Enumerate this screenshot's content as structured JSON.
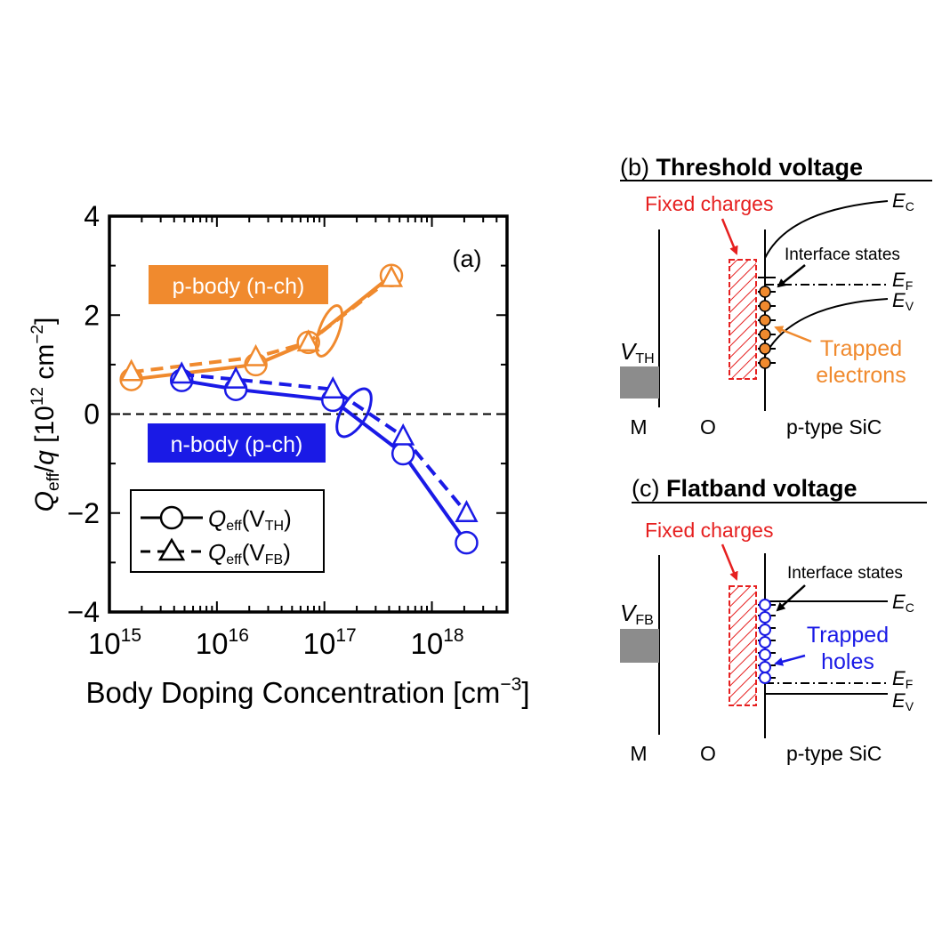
{
  "colors": {
    "orange": "#f08a2e",
    "blue": "#1a1ae6",
    "red": "#e62020",
    "black": "#000000",
    "gray": "#8c8c8c"
  },
  "chart_data": {
    "type": "line",
    "panel_label": "(a)",
    "xlabel": "Body Doping Concentration [cm",
    "xlabel_exp": "−3",
    "xlabel_close": "]",
    "ylabel_q": "Q",
    "ylabel_eff": "eff",
    "ylabel_slash": "/",
    "ylabel_qq": "q",
    "ylabel_rest": " [10",
    "ylabel_exp12": "12",
    "ylabel_cm": " cm",
    "ylabel_expm2": "−2",
    "ylabel_close": "]",
    "x_scale": "log",
    "xlim": [
      1000000000000000.0,
      5e+18
    ],
    "ylim": [
      -4,
      4
    ],
    "y_ticks": [
      {
        "v": 4,
        "label": "4"
      },
      {
        "v": 2,
        "label": "2"
      },
      {
        "v": 0,
        "label": "0"
      },
      {
        "v": -2,
        "label": "−2"
      },
      {
        "v": -4,
        "label": "−4"
      }
    ],
    "x_ticks": [
      {
        "exp": 15,
        "base": "10",
        "sup": "15"
      },
      {
        "exp": 16,
        "base": "10",
        "sup": "16"
      },
      {
        "exp": 17,
        "base": "10",
        "sup": "17"
      },
      {
        "exp": 18,
        "base": "10",
        "sup": "18"
      }
    ],
    "group_labels": {
      "p_body": "p-body (n-ch)",
      "n_body": "n-body (p-ch)"
    },
    "legend": {
      "vth_q": "Q",
      "vth_eff": "eff",
      "vth_open": "(V",
      "vth_sub": "TH",
      "vth_close": ")",
      "vfb_q": "Q",
      "vfb_eff": "eff",
      "vfb_open": "(V",
      "vfb_sub": "FB",
      "vfb_close": ")"
    },
    "series": [
      {
        "group": "p-body",
        "quantity": "VTH",
        "style": "solid",
        "marker": "circle",
        "x": [
          1600000000000000.0,
          2.3e+16,
          7.1e+16,
          4.2e+17
        ],
        "y": [
          0.7,
          1.0,
          1.45,
          2.8
        ]
      },
      {
        "group": "p-body",
        "quantity": "VFB",
        "style": "dashed",
        "marker": "triangle",
        "x": [
          1600000000000000.0,
          2.3e+16,
          7.1e+16,
          4.2e+17
        ],
        "y": [
          0.85,
          1.15,
          1.45,
          2.75
        ]
      },
      {
        "group": "n-body",
        "quantity": "VTH",
        "style": "solid",
        "marker": "circle",
        "x": [
          4700000000000000.0,
          1.5e+16,
          1.2e+17,
          5.4e+17,
          2.1e+18
        ],
        "y": [
          0.68,
          0.5,
          0.28,
          -0.8,
          -2.6
        ]
      },
      {
        "group": "n-body",
        "quantity": "VFB",
        "style": "dashed",
        "marker": "triangle",
        "x": [
          4700000000000000.0,
          1.5e+16,
          1.2e+17,
          5.4e+17,
          2.1e+18
        ],
        "y": [
          0.8,
          0.7,
          0.5,
          -0.45,
          -2.0
        ]
      }
    ]
  },
  "panel_b": {
    "label": "(b) ",
    "title": "Threshold voltage",
    "fixed_charges": "Fixed charges",
    "ec_e": "E",
    "ec_sub": "C",
    "ef_e": "E",
    "ef_sub": "F",
    "ev_e": "E",
    "ev_sub": "V",
    "interface_states": "Interface states",
    "v_main": "V",
    "v_sub": "TH",
    "trapped_1": "Trapped",
    "trapped_2": "electrons",
    "m": "M",
    "o": "O",
    "sic": "p-type SiC"
  },
  "panel_c": {
    "label": "(c) ",
    "title": "Flatband voltage",
    "fixed_charges": "Fixed charges",
    "ec_e": "E",
    "ec_sub": "C",
    "ef_e": "E",
    "ef_sub": "F",
    "ev_e": "E",
    "ev_sub": "V",
    "interface_states": "Interface states",
    "v_main": "V",
    "v_sub": "FB",
    "trapped_1": "Trapped",
    "trapped_2": "holes",
    "m": "M",
    "o": "O",
    "sic": "p-type SiC"
  }
}
